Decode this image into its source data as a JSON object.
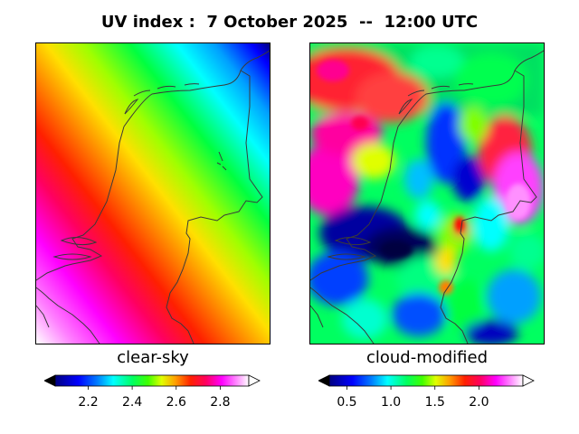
{
  "title": "UV index :  7 October 2025  --  12:00 UTC",
  "panels": {
    "left": {
      "label": "clear-sky",
      "colorbar_ticks": [
        "2.2",
        "2.4",
        "2.6",
        "2.8"
      ],
      "colorbar_range": [
        2.05,
        2.93
      ],
      "colormap": "gist_ncar"
    },
    "right": {
      "label": "cloud-modified",
      "colorbar_ticks": [
        "0.5",
        "1.0",
        "1.5",
        "2.0"
      ],
      "colorbar_range": [
        0.3,
        2.5
      ],
      "colormap": "gist_ncar"
    }
  },
  "colors": {
    "coastline": "#3a3a3a",
    "frame": "#000000"
  }
}
